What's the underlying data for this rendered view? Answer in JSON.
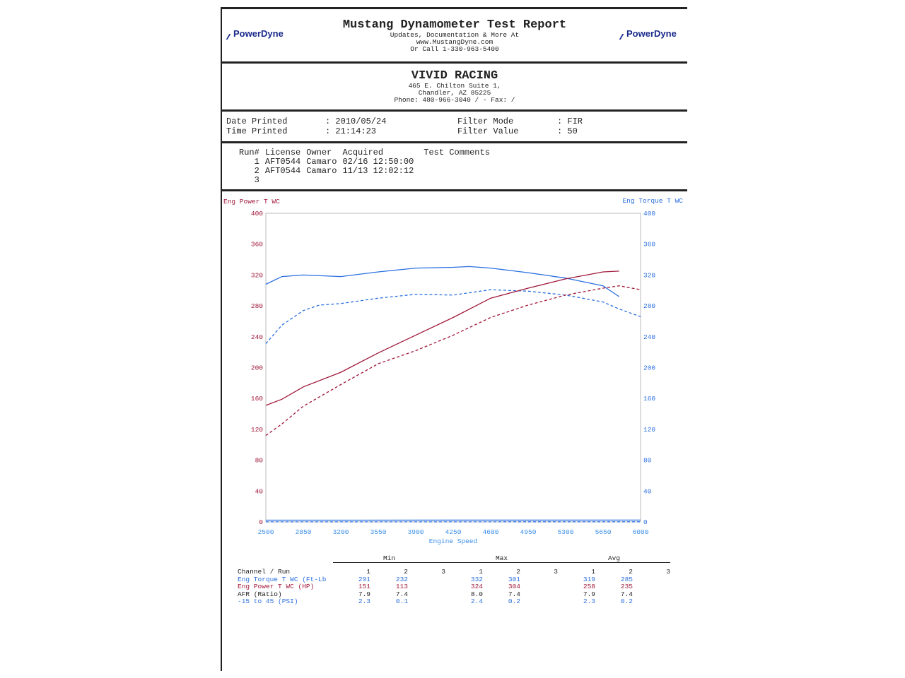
{
  "header": {
    "title": "Mustang Dynamometer Test Report",
    "line1": "Updates, Documentation & More At",
    "line2": "www.MustangDyne.com",
    "line3": "Or Call 1-330-963-5400",
    "logo": "PowerDyne"
  },
  "shop": {
    "name": "VIVID RACING",
    "address1": "465 E. Chilton Suite 1,",
    "address2": "Chandler, AZ  85225",
    "phone": "Phone: 480-966-3040 /  - Fax:  /"
  },
  "info": {
    "date_label": "Date Printed",
    "date": ": 2010/05/24",
    "time_label": "Time Printed",
    "time": ": 21:14:23",
    "filter_mode_label": "Filter Mode",
    "filter_mode": ": FIR",
    "filter_value_label": "Filter Value",
    "filter_value": ": 50"
  },
  "runs": {
    "headers": [
      "Run#",
      "License",
      "Owner",
      "Acquired",
      "Test Comments"
    ],
    "rows": [
      [
        "1",
        "AFT0544",
        "Camaro",
        "02/16 12:50:00",
        ""
      ],
      [
        "2",
        "AFT0544",
        "Camaro",
        "11/13 12:02:12",
        ""
      ],
      [
        "3",
        "",
        "",
        "",
        ""
      ]
    ]
  },
  "colors": {
    "torque": "#2a6fe0",
    "power": "#a0183a"
  },
  "chart_data": {
    "type": "line",
    "xlabel": "Engine Speed",
    "ylabel_left": "Eng Power T WC",
    "ylabel_right": "Eng Torque T WC",
    "xlim": [
      2500,
      6000
    ],
    "ylim": [
      0,
      400
    ],
    "xticks": [
      2500,
      2850,
      3200,
      3550,
      3900,
      4250,
      4600,
      4950,
      5300,
      5650,
      6000
    ],
    "yticks": [
      0,
      40,
      80,
      120,
      160,
      200,
      240,
      280,
      320,
      360,
      400
    ],
    "series": [
      {
        "axis": "right",
        "run": 1,
        "style": "solid",
        "color": "#2a6fe0",
        "x": [
          2500,
          2650,
          2850,
          3200,
          3550,
          3900,
          4250,
          4400,
          4600,
          4950,
          5300,
          5650,
          5800
        ],
        "y": [
          308,
          318,
          320,
          318,
          324,
          329,
          330,
          331,
          329,
          323,
          316,
          306,
          292
        ]
      },
      {
        "axis": "right",
        "run": 2,
        "style": "dashed",
        "color": "#2a6fe0",
        "x": [
          2500,
          2650,
          2850,
          3000,
          3200,
          3550,
          3900,
          4250,
          4600,
          4950,
          5300,
          5650,
          5800,
          6000
        ],
        "y": [
          231,
          255,
          274,
          281,
          283,
          290,
          295,
          294,
          301,
          299,
          294,
          285,
          276,
          266
        ]
      },
      {
        "axis": "left",
        "run": 1,
        "style": "solid",
        "color": "#a0183a",
        "x": [
          2500,
          2650,
          2850,
          3200,
          3550,
          3900,
          4250,
          4600,
          4950,
          5300,
          5650,
          5800
        ],
        "y": [
          151,
          159,
          175,
          194,
          219,
          242,
          265,
          290,
          303,
          315,
          324,
          325
        ]
      },
      {
        "axis": "left",
        "run": 2,
        "style": "dashed",
        "color": "#a0183a",
        "x": [
          2500,
          2650,
          2850,
          3200,
          3550,
          3900,
          4250,
          4600,
          4950,
          5300,
          5650,
          5800,
          6000
        ],
        "y": [
          112,
          127,
          150,
          178,
          205,
          222,
          242,
          265,
          281,
          294,
          303,
          306,
          301
        ]
      },
      {
        "axis": "right",
        "run": 1,
        "style": "solid",
        "color": "#2a6fe0",
        "x": [
          2500,
          6000
        ],
        "y": [
          2.3,
          2.4
        ]
      },
      {
        "axis": "right",
        "run": 2,
        "style": "dashed",
        "color": "#2a6fe0",
        "x": [
          2500,
          6000
        ],
        "y": [
          0.1,
          0.2
        ]
      }
    ]
  },
  "stats": {
    "groups": [
      "Min",
      "Max",
      "Avg"
    ],
    "header": [
      "Channel / Run",
      "1",
      "2",
      "3",
      "1",
      "2",
      "3",
      "1",
      "2",
      "3"
    ],
    "rows": [
      {
        "cls": "blue",
        "cells": [
          "Eng Torque T WC (Ft-Lb",
          "291",
          "232",
          "",
          "332",
          "301",
          "",
          "319",
          "285",
          ""
        ]
      },
      {
        "cls": "red",
        "cells": [
          "Eng Power T WC (HP)",
          "151",
          "113",
          "",
          "324",
          "304",
          "",
          "258",
          "235",
          ""
        ]
      },
      {
        "cls": "",
        "cells": [
          "AFR (Ratio)",
          "7.9",
          "7.4",
          "",
          "8.0",
          "7.4",
          "",
          "7.9",
          "7.4",
          ""
        ]
      },
      {
        "cls": "blue",
        "cells": [
          "-15 to 45 (PSI)",
          "2.3",
          "0.1",
          "",
          "2.4",
          "0.2",
          "",
          "2.3",
          "0.2",
          ""
        ]
      }
    ]
  }
}
